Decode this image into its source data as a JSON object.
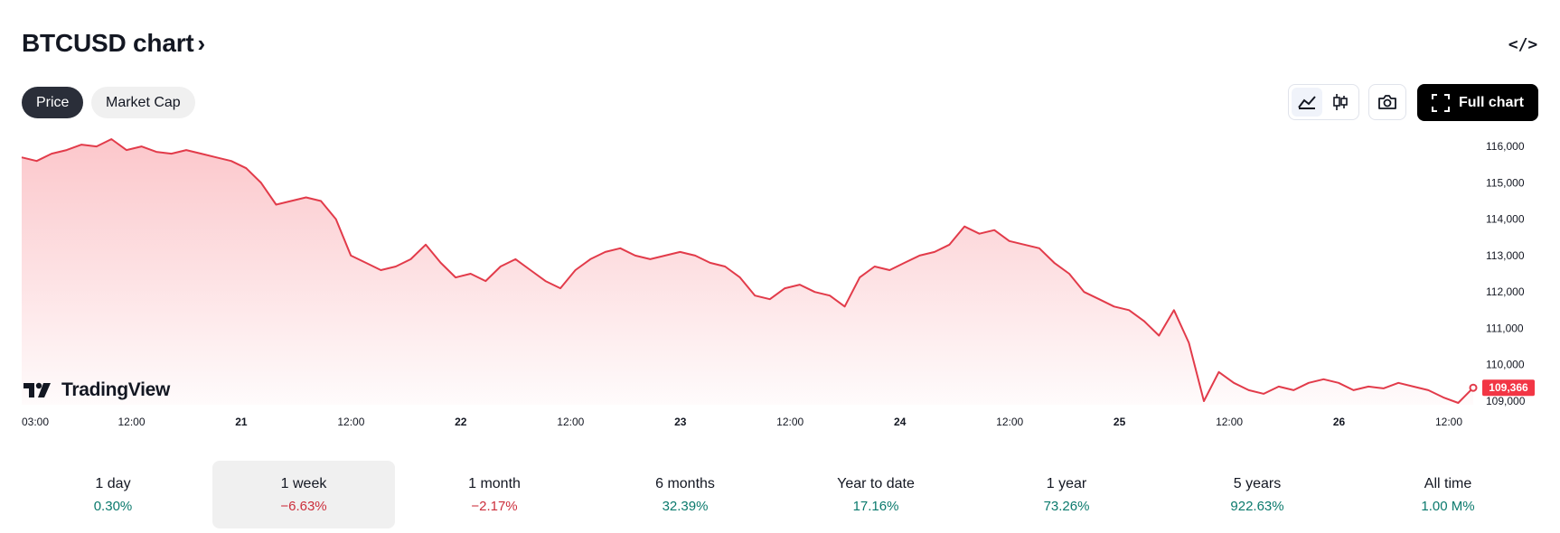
{
  "header": {
    "title": "BTCUSD chart",
    "chevron": "›",
    "embed_icon": "</>"
  },
  "tabs": [
    {
      "label": "Price",
      "active": true
    },
    {
      "label": "Market Cap",
      "active": false
    }
  ],
  "toolbar": {
    "chart_types": [
      "area-chart-icon",
      "candles-icon"
    ],
    "selected_chart_type": "area-chart-icon",
    "snapshot_icon": "camera-icon",
    "full_chart_label": "Full chart"
  },
  "logo_text": "TradingView",
  "chart_data": {
    "type": "area",
    "title": "",
    "xlabel": "",
    "ylabel": "",
    "ylim": [
      108900,
      116300
    ],
    "y_ticks": [
      "116,000",
      "115,000",
      "114,000",
      "113,000",
      "112,000",
      "111,000",
      "110,000",
      "109,000"
    ],
    "x_ticks": [
      {
        "label": "03:00",
        "bold": false
      },
      {
        "label": "12:00",
        "bold": false
      },
      {
        "label": "21",
        "bold": true
      },
      {
        "label": "12:00",
        "bold": false
      },
      {
        "label": "22",
        "bold": true
      },
      {
        "label": "12:00",
        "bold": false
      },
      {
        "label": "23",
        "bold": true
      },
      {
        "label": "12:00",
        "bold": false
      },
      {
        "label": "24",
        "bold": true
      },
      {
        "label": "12:00",
        "bold": false
      },
      {
        "label": "25",
        "bold": true
      },
      {
        "label": "12:00",
        "bold": false
      },
      {
        "label": "26",
        "bold": true
      },
      {
        "label": "12:00",
        "bold": false
      }
    ],
    "series": [
      {
        "color": "#e23b4a",
        "values": [
          115700,
          115600,
          115800,
          115900,
          116050,
          116000,
          116200,
          115900,
          116000,
          115850,
          115800,
          115900,
          115800,
          115700,
          115600,
          115400,
          115000,
          114400,
          114500,
          114600,
          114500,
          114000,
          113000,
          112800,
          112600,
          112700,
          112900,
          113300,
          112800,
          112400,
          112500,
          112300,
          112700,
          112900,
          112600,
          112300,
          112100,
          112600,
          112900,
          113100,
          113200,
          113000,
          112900,
          113000,
          113100,
          113000,
          112800,
          112700,
          112400,
          111900,
          111800,
          112100,
          112200,
          112000,
          111900,
          111600,
          112400,
          112700,
          112600,
          112800,
          113000,
          113100,
          113300,
          113800,
          113600,
          113700,
          113400,
          113300,
          113200,
          112800,
          112500,
          112000,
          111800,
          111600,
          111500,
          111200,
          110800,
          111500,
          110600,
          109000,
          109800,
          109500,
          109300,
          109200,
          109400,
          109300,
          109500,
          109600,
          109500,
          109300,
          109400,
          109350,
          109500,
          109400,
          109300,
          109100,
          108950,
          109366
        ],
        "last_value_label": "109,366"
      }
    ]
  },
  "periods": [
    {
      "label": "1 day",
      "value": "0.30%",
      "trend": "pos",
      "selected": false
    },
    {
      "label": "1 week",
      "value": "−6.63%",
      "trend": "neg",
      "selected": true
    },
    {
      "label": "1 month",
      "value": "−2.17%",
      "trend": "neg",
      "selected": false
    },
    {
      "label": "6 months",
      "value": "32.39%",
      "trend": "pos",
      "selected": false
    },
    {
      "label": "Year to date",
      "value": "17.16%",
      "trend": "pos",
      "selected": false
    },
    {
      "label": "1 year",
      "value": "73.26%",
      "trend": "pos",
      "selected": false
    },
    {
      "label": "5 years",
      "value": "922.63%",
      "trend": "pos",
      "selected": false
    },
    {
      "label": "All time",
      "value": "1.00 M%",
      "trend": "pos",
      "selected": false
    }
  ]
}
